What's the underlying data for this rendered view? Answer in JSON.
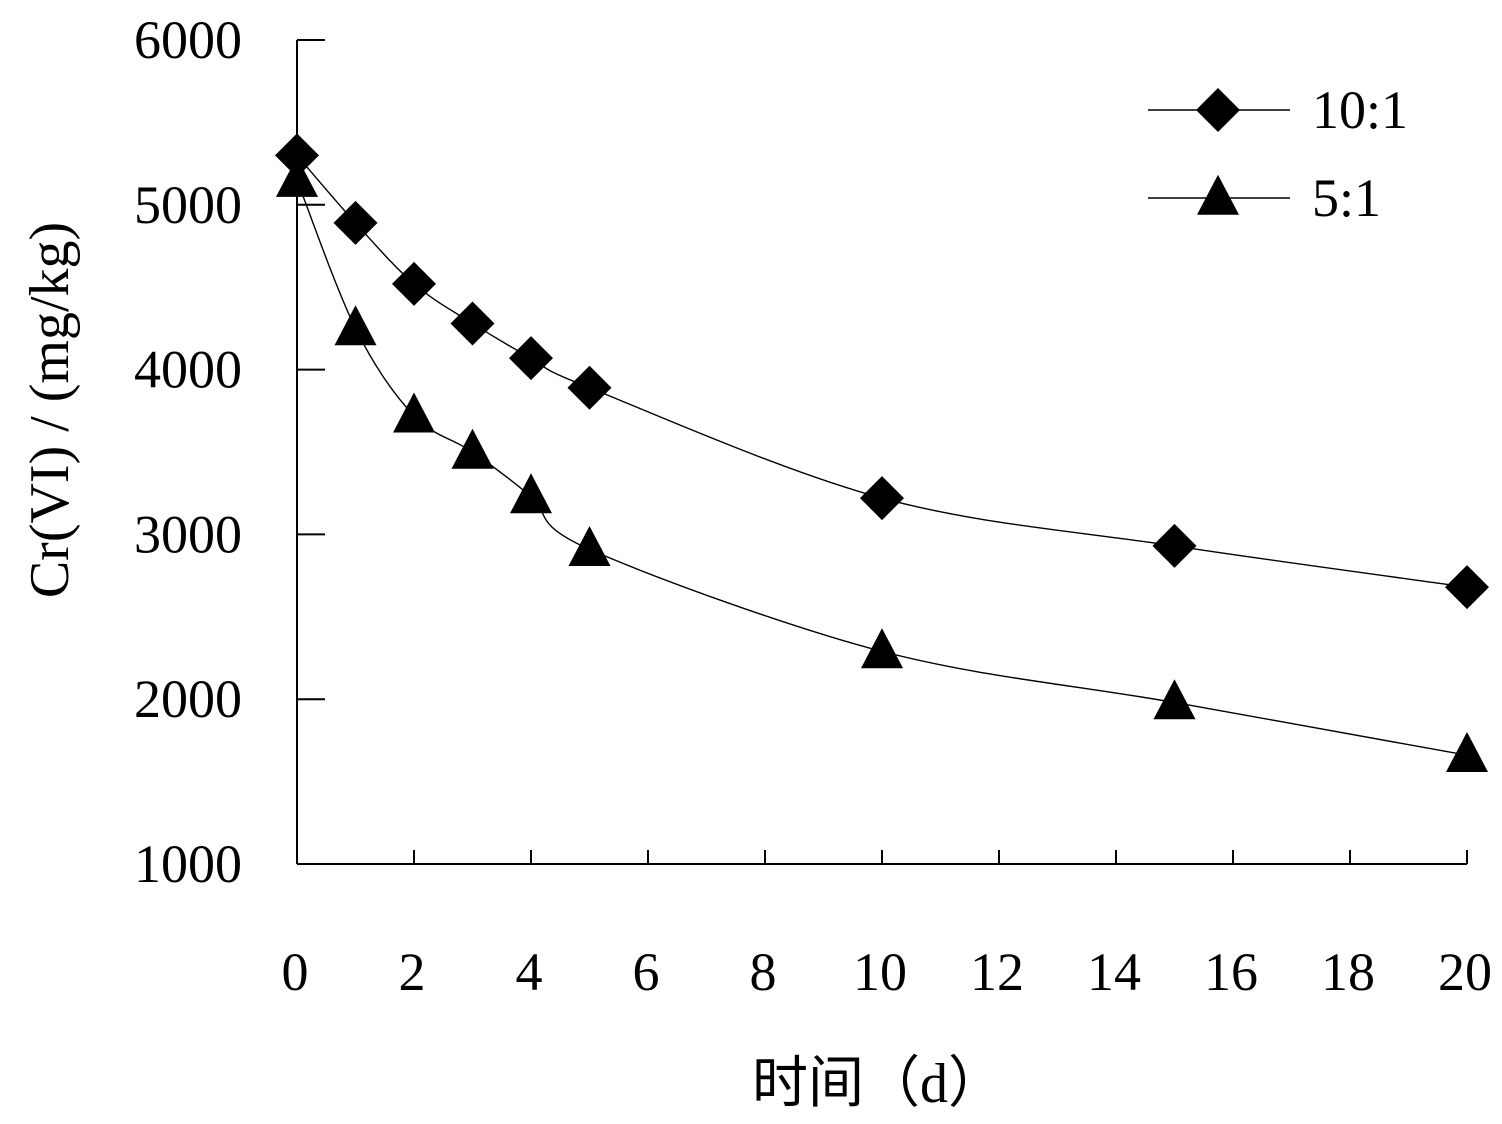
{
  "chart_data": {
    "type": "line",
    "title": "",
    "xlabel": "时间（d）",
    "ylabel": "Cr(VI) / (mg/kg)",
    "xlim": [
      0,
      20
    ],
    "ylim": [
      1000,
      6000
    ],
    "xticks": [
      0,
      2,
      4,
      6,
      8,
      10,
      12,
      14,
      16,
      18,
      20
    ],
    "yticks": [
      1000,
      2000,
      3000,
      4000,
      5000,
      6000
    ],
    "grid": false,
    "legend_position": "top-right",
    "series": [
      {
        "name": "10:1",
        "marker": "diamond",
        "color": "#000000",
        "x": [
          0,
          1,
          2,
          3,
          4,
          5,
          10,
          15,
          20
        ],
        "y": [
          5300,
          4890,
          4520,
          4280,
          4070,
          3890,
          3220,
          2930,
          2680
        ]
      },
      {
        "name": "5:1",
        "marker": "triangle",
        "color": "#000000",
        "x": [
          0,
          1,
          2,
          3,
          4,
          5,
          10,
          15,
          20
        ],
        "y": [
          5150,
          4250,
          3720,
          3500,
          3230,
          2910,
          2290,
          1980,
          1660
        ]
      }
    ]
  }
}
